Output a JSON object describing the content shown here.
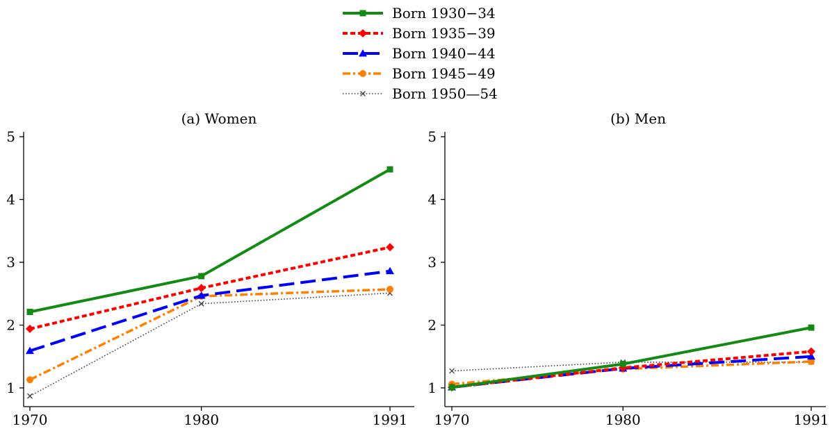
{
  "legend": [
    {
      "name": "Born 1930−34",
      "color": "#138a13",
      "marker": "square-marker",
      "dash": "solid"
    },
    {
      "name": "Born 1935−39",
      "color": "#ff0000",
      "marker": "diamond-marker",
      "dash": "short-dash"
    },
    {
      "name": "Born 1940−44",
      "color": "#0000ff",
      "marker": "triangle-marker",
      "dash": "long-dash"
    },
    {
      "name": "Born 1945−49",
      "color": "#ff8000",
      "marker": "circle-marker",
      "dash": "dash-dot"
    },
    {
      "name": "Born 1950—54",
      "color": "#444444",
      "marker": "x-marker",
      "dash": "dotted"
    }
  ],
  "chart_data": [
    {
      "type": "line",
      "title": "(a) Women",
      "x": [
        "1970",
        "1980",
        "1991"
      ],
      "ylim": [
        1,
        5
      ],
      "yticks": [
        "1",
        "2",
        "3",
        "4",
        "5"
      ],
      "series": [
        {
          "name": "Born 1930−34",
          "values": [
            2.21,
            2.78,
            4.48
          ]
        },
        {
          "name": "Born 1935−39",
          "values": [
            1.94,
            2.59,
            3.24
          ]
        },
        {
          "name": "Born 1940−44",
          "values": [
            1.59,
            2.47,
            2.86
          ]
        },
        {
          "name": "Born 1945−49",
          "values": [
            1.13,
            2.46,
            2.57
          ]
        },
        {
          "name": "Born 1950—54",
          "values": [
            0.87,
            2.34,
            2.51
          ]
        }
      ]
    },
    {
      "type": "line",
      "title": "(b) Men",
      "x": [
        "1970",
        "1980",
        "1991"
      ],
      "ylim": [
        1,
        5
      ],
      "yticks": [
        "1",
        "2",
        "3",
        "4",
        "5"
      ],
      "series": [
        {
          "name": "Born 1930−34",
          "values": [
            1.01,
            1.38,
            1.96
          ]
        },
        {
          "name": "Born 1935−39",
          "values": [
            1.01,
            1.32,
            1.58
          ]
        },
        {
          "name": "Born 1940−44",
          "values": [
            1.01,
            1.31,
            1.5
          ]
        },
        {
          "name": "Born 1945−49",
          "values": [
            1.06,
            1.3,
            1.42
          ]
        },
        {
          "name": "Born 1950—54",
          "values": [
            1.27,
            1.41,
            1.41
          ]
        }
      ]
    }
  ]
}
